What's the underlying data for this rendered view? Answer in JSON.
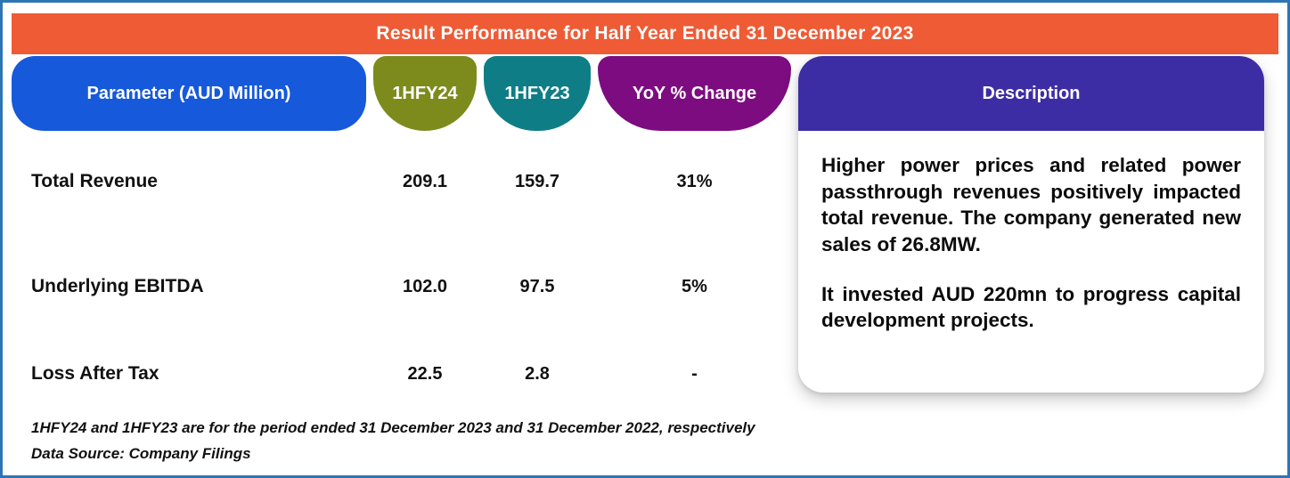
{
  "banner": {
    "title": "Result Performance for Half Year Ended 31 December 2023"
  },
  "table": {
    "headers": {
      "parameter": "Parameter (AUD Million)",
      "hfy24": "1HFY24",
      "hfy23": "1HFY23",
      "yoy": "YoY % Change"
    },
    "rows": [
      {
        "parameter": "Total Revenue",
        "hfy24": "209.1",
        "hfy23": "159.7",
        "yoy": "31%"
      },
      {
        "parameter": "Underlying EBITDA",
        "hfy24": "102.0",
        "hfy23": "97.5",
        "yoy": "5%"
      },
      {
        "parameter": "Loss After Tax",
        "hfy24": "22.5",
        "hfy23": "2.8",
        "yoy": "-"
      }
    ]
  },
  "description": {
    "header": "Description",
    "paragraphs": [
      "Higher power prices and related power passthrough revenues positively impacted total revenue.  The company generated new sales of 26.8MW.",
      "It invested AUD 220mn to progress capital development projects."
    ]
  },
  "footnotes": [
    "1HFY24 and 1HFY23 are for the period ended 31 December  2023 and 31 December 2022, respectively",
    "Data Source: Company Filings"
  ],
  "colors": {
    "frame_border": "#2E75B6",
    "banner_bg": "#EE5B35",
    "parameter_header_bg": "#1659DB",
    "hfy24_bg": "#7C8B1C",
    "hfy23_bg": "#0E7D86",
    "yoy_bg": "#7C0C80",
    "description_bg": "#3D2DA5",
    "text": "#111111"
  },
  "chart_data": {
    "type": "table",
    "title": "Result Performance for Half Year Ended 31 December 2023",
    "columns": [
      "Parameter (AUD Million)",
      "1HFY24",
      "1HFY23",
      "YoY % Change"
    ],
    "rows": [
      [
        "Total Revenue",
        209.1,
        159.7,
        "31%"
      ],
      [
        "Underlying EBITDA",
        102.0,
        97.5,
        "5%"
      ],
      [
        "Loss After Tax",
        22.5,
        2.8,
        "-"
      ]
    ],
    "notes": [
      "1HFY24 and 1HFY23 are for the period ended 31 December 2023 and 31 December 2022, respectively",
      "Data Source: Company Filings"
    ]
  }
}
